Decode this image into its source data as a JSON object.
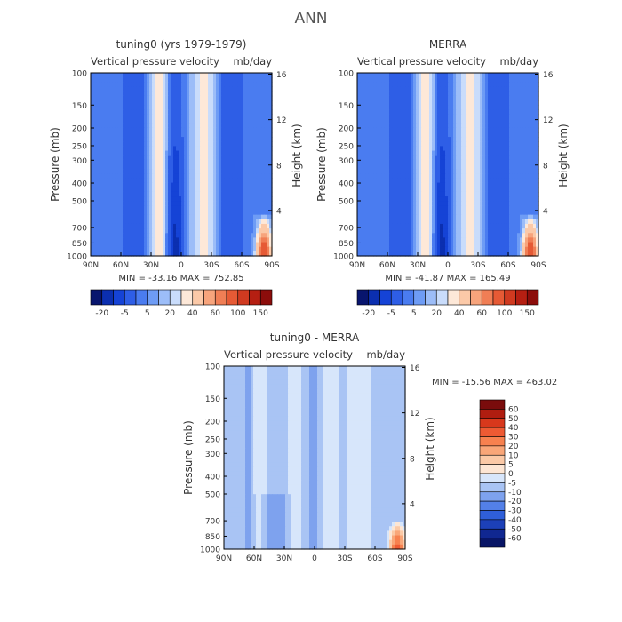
{
  "figure": {
    "title": "ANN"
  },
  "chart_data": [
    {
      "type": "heatmap",
      "title": "tuning0 (yrs 1979-1979)",
      "subtitle": "Vertical pressure velocity",
      "units": "mb/day",
      "ylabel": "Pressure (mb)",
      "y2label": "Height (km)",
      "x_ticks": [
        "90N",
        "60N",
        "30N",
        "0",
        "30S",
        "60S",
        "90S"
      ],
      "y_ticks": [
        "100",
        "150",
        "200",
        "250",
        "300",
        "400",
        "500",
        "700",
        "850",
        "1000"
      ],
      "y2_ticks": [
        "16",
        "12",
        "8",
        "4"
      ],
      "y_scale": "log",
      "stats": "MIN = -33.16   MAX = 752.85",
      "colorbar_labels": [
        "-20",
        "-5",
        "5",
        "20",
        "40",
        "60",
        "100",
        "150"
      ],
      "colorbar_colors": [
        "#08156e",
        "#0b2fb0",
        "#1543d6",
        "#2e5ee6",
        "#4a7cf0",
        "#6e9cf5",
        "#9cbdf8",
        "#c9dcfb",
        "#fde8d8",
        "#fbc9a8",
        "#f7a47c",
        "#f07e55",
        "#e65a35",
        "#d03a20",
        "#b51f12",
        "#8c0d0b"
      ]
    },
    {
      "type": "heatmap",
      "title": "MERRA",
      "subtitle": "Vertical pressure velocity",
      "units": "mb/day",
      "ylabel": "Pressure (mb)",
      "y2label": "Height (km)",
      "x_ticks": [
        "90N",
        "60N",
        "30N",
        "0",
        "30S",
        "60S",
        "90S"
      ],
      "y_ticks": [
        "100",
        "150",
        "200",
        "250",
        "300",
        "400",
        "500",
        "700",
        "850",
        "1000"
      ],
      "y2_ticks": [
        "16",
        "12",
        "8",
        "4"
      ],
      "y_scale": "log",
      "stats": "MIN = -41.87   MAX = 165.49",
      "colorbar_labels": [
        "-20",
        "-5",
        "5",
        "20",
        "40",
        "60",
        "100",
        "150"
      ],
      "colorbar_colors": [
        "#08156e",
        "#0b2fb0",
        "#1543d6",
        "#2e5ee6",
        "#4a7cf0",
        "#6e9cf5",
        "#9cbdf8",
        "#c9dcfb",
        "#fde8d8",
        "#fbc9a8",
        "#f7a47c",
        "#f07e55",
        "#e65a35",
        "#d03a20",
        "#b51f12",
        "#8c0d0b"
      ]
    },
    {
      "type": "heatmap",
      "title": "tuning0 - MERRA",
      "subtitle": "Vertical pressure velocity",
      "units": "mb/day",
      "ylabel": "Pressure (mb)",
      "y2label": "Height (km)",
      "x_ticks": [
        "90N",
        "60N",
        "30N",
        "0",
        "30S",
        "60S",
        "90S"
      ],
      "y_ticks": [
        "100",
        "150",
        "200",
        "250",
        "300",
        "400",
        "500",
        "700",
        "850",
        "1000"
      ],
      "y2_ticks": [
        "16",
        "12",
        "8",
        "4"
      ],
      "y_scale": "log",
      "stats": "MIN = -15.56   MAX = 463.02",
      "colorbar_labels": [
        "60",
        "50",
        "40",
        "30",
        "20",
        "10",
        "5",
        "0",
        "-5",
        "-10",
        "-20",
        "-30",
        "-40",
        "-50",
        "-60"
      ],
      "colorbar_colors": [
        "#7a0c0c",
        "#b01d10",
        "#d8381c",
        "#ee5a33",
        "#f7814f",
        "#f9a678",
        "#fbc9a6",
        "#fde6d4",
        "#d7e6fb",
        "#a9c4f4",
        "#7ea2ee",
        "#5380e8",
        "#2f5fd9",
        "#1c40b8",
        "#102791",
        "#081566"
      ]
    }
  ]
}
